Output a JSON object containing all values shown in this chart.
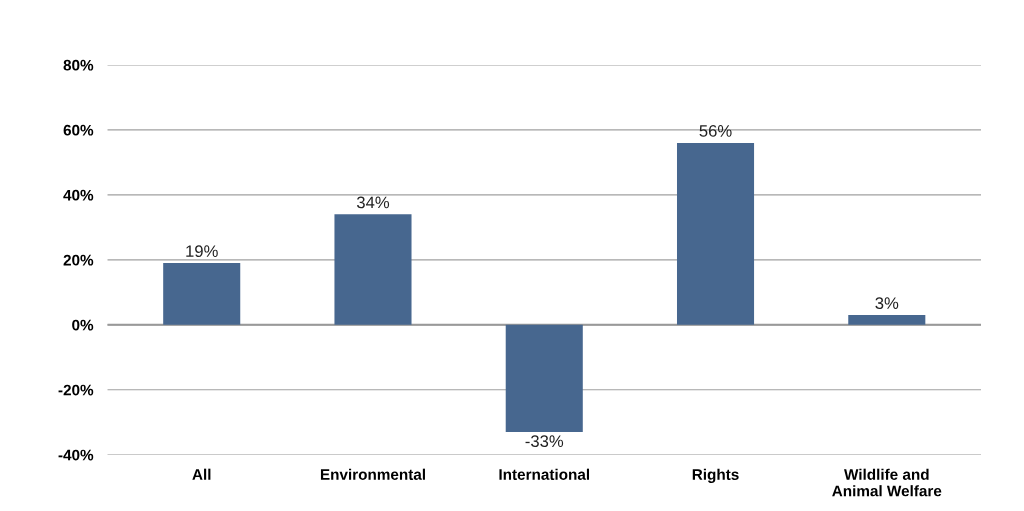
{
  "chart_data": {
    "type": "bar",
    "categories": [
      "All",
      "Environmental",
      "International",
      "Rights",
      "Wildlife and\nAnimal Welfare"
    ],
    "values": [
      19,
      34,
      -33,
      56,
      3
    ],
    "value_labels": [
      "19%",
      "34%",
      "-33%",
      "56%",
      "3%"
    ],
    "color": "#47678f",
    "ylim": [
      -40,
      80
    ],
    "yticks": [
      {
        "value": -40,
        "label": "-40%"
      },
      {
        "value": -20,
        "label": "-20%"
      },
      {
        "value": 0,
        "label": "0%"
      },
      {
        "value": 20,
        "label": "20%"
      },
      {
        "value": 40,
        "label": "40%"
      },
      {
        "value": 60,
        "label": "60%"
      },
      {
        "value": 80,
        "label": "80%"
      }
    ],
    "grid": "y"
  }
}
